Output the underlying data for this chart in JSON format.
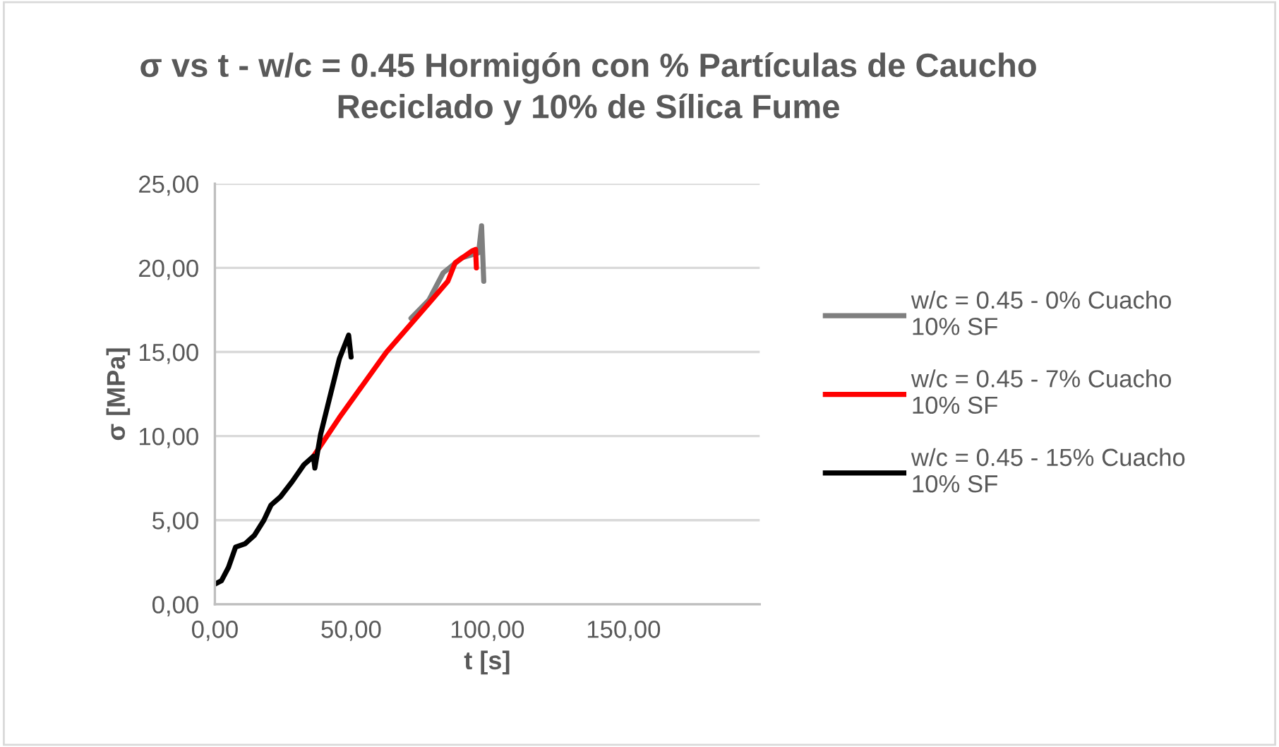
{
  "chart_data": {
    "type": "line",
    "title": "σ vs t - w/c = 0.45 Hormigón con % Partículas de Caucho\nReciclado y 10% de Sílica Fume",
    "xlabel": "t [s]",
    "ylabel": "σ [MPa]",
    "xlim": [
      0,
      200
    ],
    "xticks": [
      {
        "value": 0,
        "label": "0,00"
      },
      {
        "value": 50,
        "label": "50,00"
      },
      {
        "value": 100,
        "label": "100,00"
      },
      {
        "value": 150,
        "label": "150,00"
      }
    ],
    "ylim": [
      0,
      25
    ],
    "yticks": [
      {
        "value": 0,
        "label": "0,00"
      },
      {
        "value": 5,
        "label": "5,00"
      },
      {
        "value": 10,
        "label": "10,00"
      },
      {
        "value": 15,
        "label": "15,00"
      },
      {
        "value": 20,
        "label": "20,00"
      },
      {
        "value": 25,
        "label": "25,00"
      }
    ],
    "grid": "y",
    "legend": "right",
    "marker": "none",
    "line_style": "solid",
    "series": [
      {
        "name": "w/c = 0.45 - 0% Cuacho\n10% SF",
        "color": "#7f7f7f",
        "x": [
          72,
          78.6,
          83.8,
          90.7,
          96.8,
          97.9,
          98.7
        ],
        "values": [
          17.0,
          18.1,
          19.7,
          20.6,
          20.9,
          22.5,
          19.2
        ]
      },
      {
        "name": "w/c = 0.45 - 7% Cuacho\n10% SF",
        "color": "#ff0000",
        "x": [
          36.2,
          45.7,
          63,
          78.6,
          85.5,
          88.2,
          94.3,
          95.7,
          96
        ],
        "values": [
          8.8,
          11.1,
          15.0,
          17.9,
          19.2,
          20.3,
          21.0,
          21.1,
          20.0
        ]
      },
      {
        "name": "w/c = 0.45 - 15% Cuacho\n10% SF",
        "color": "#000000",
        "x": [
          0,
          2.4,
          5,
          7.6,
          11.1,
          14.5,
          18,
          20.6,
          24.1,
          28.4,
          32.7,
          36.2,
          36.7,
          38.8,
          41.4,
          45.7,
          49.1,
          50
        ],
        "values": [
          1.2,
          1.4,
          2.2,
          3.4,
          3.6,
          4.1,
          5.0,
          5.9,
          6.4,
          7.3,
          8.3,
          8.8,
          8.1,
          10.1,
          11.8,
          14.6,
          16.0,
          14.7
        ]
      }
    ]
  }
}
